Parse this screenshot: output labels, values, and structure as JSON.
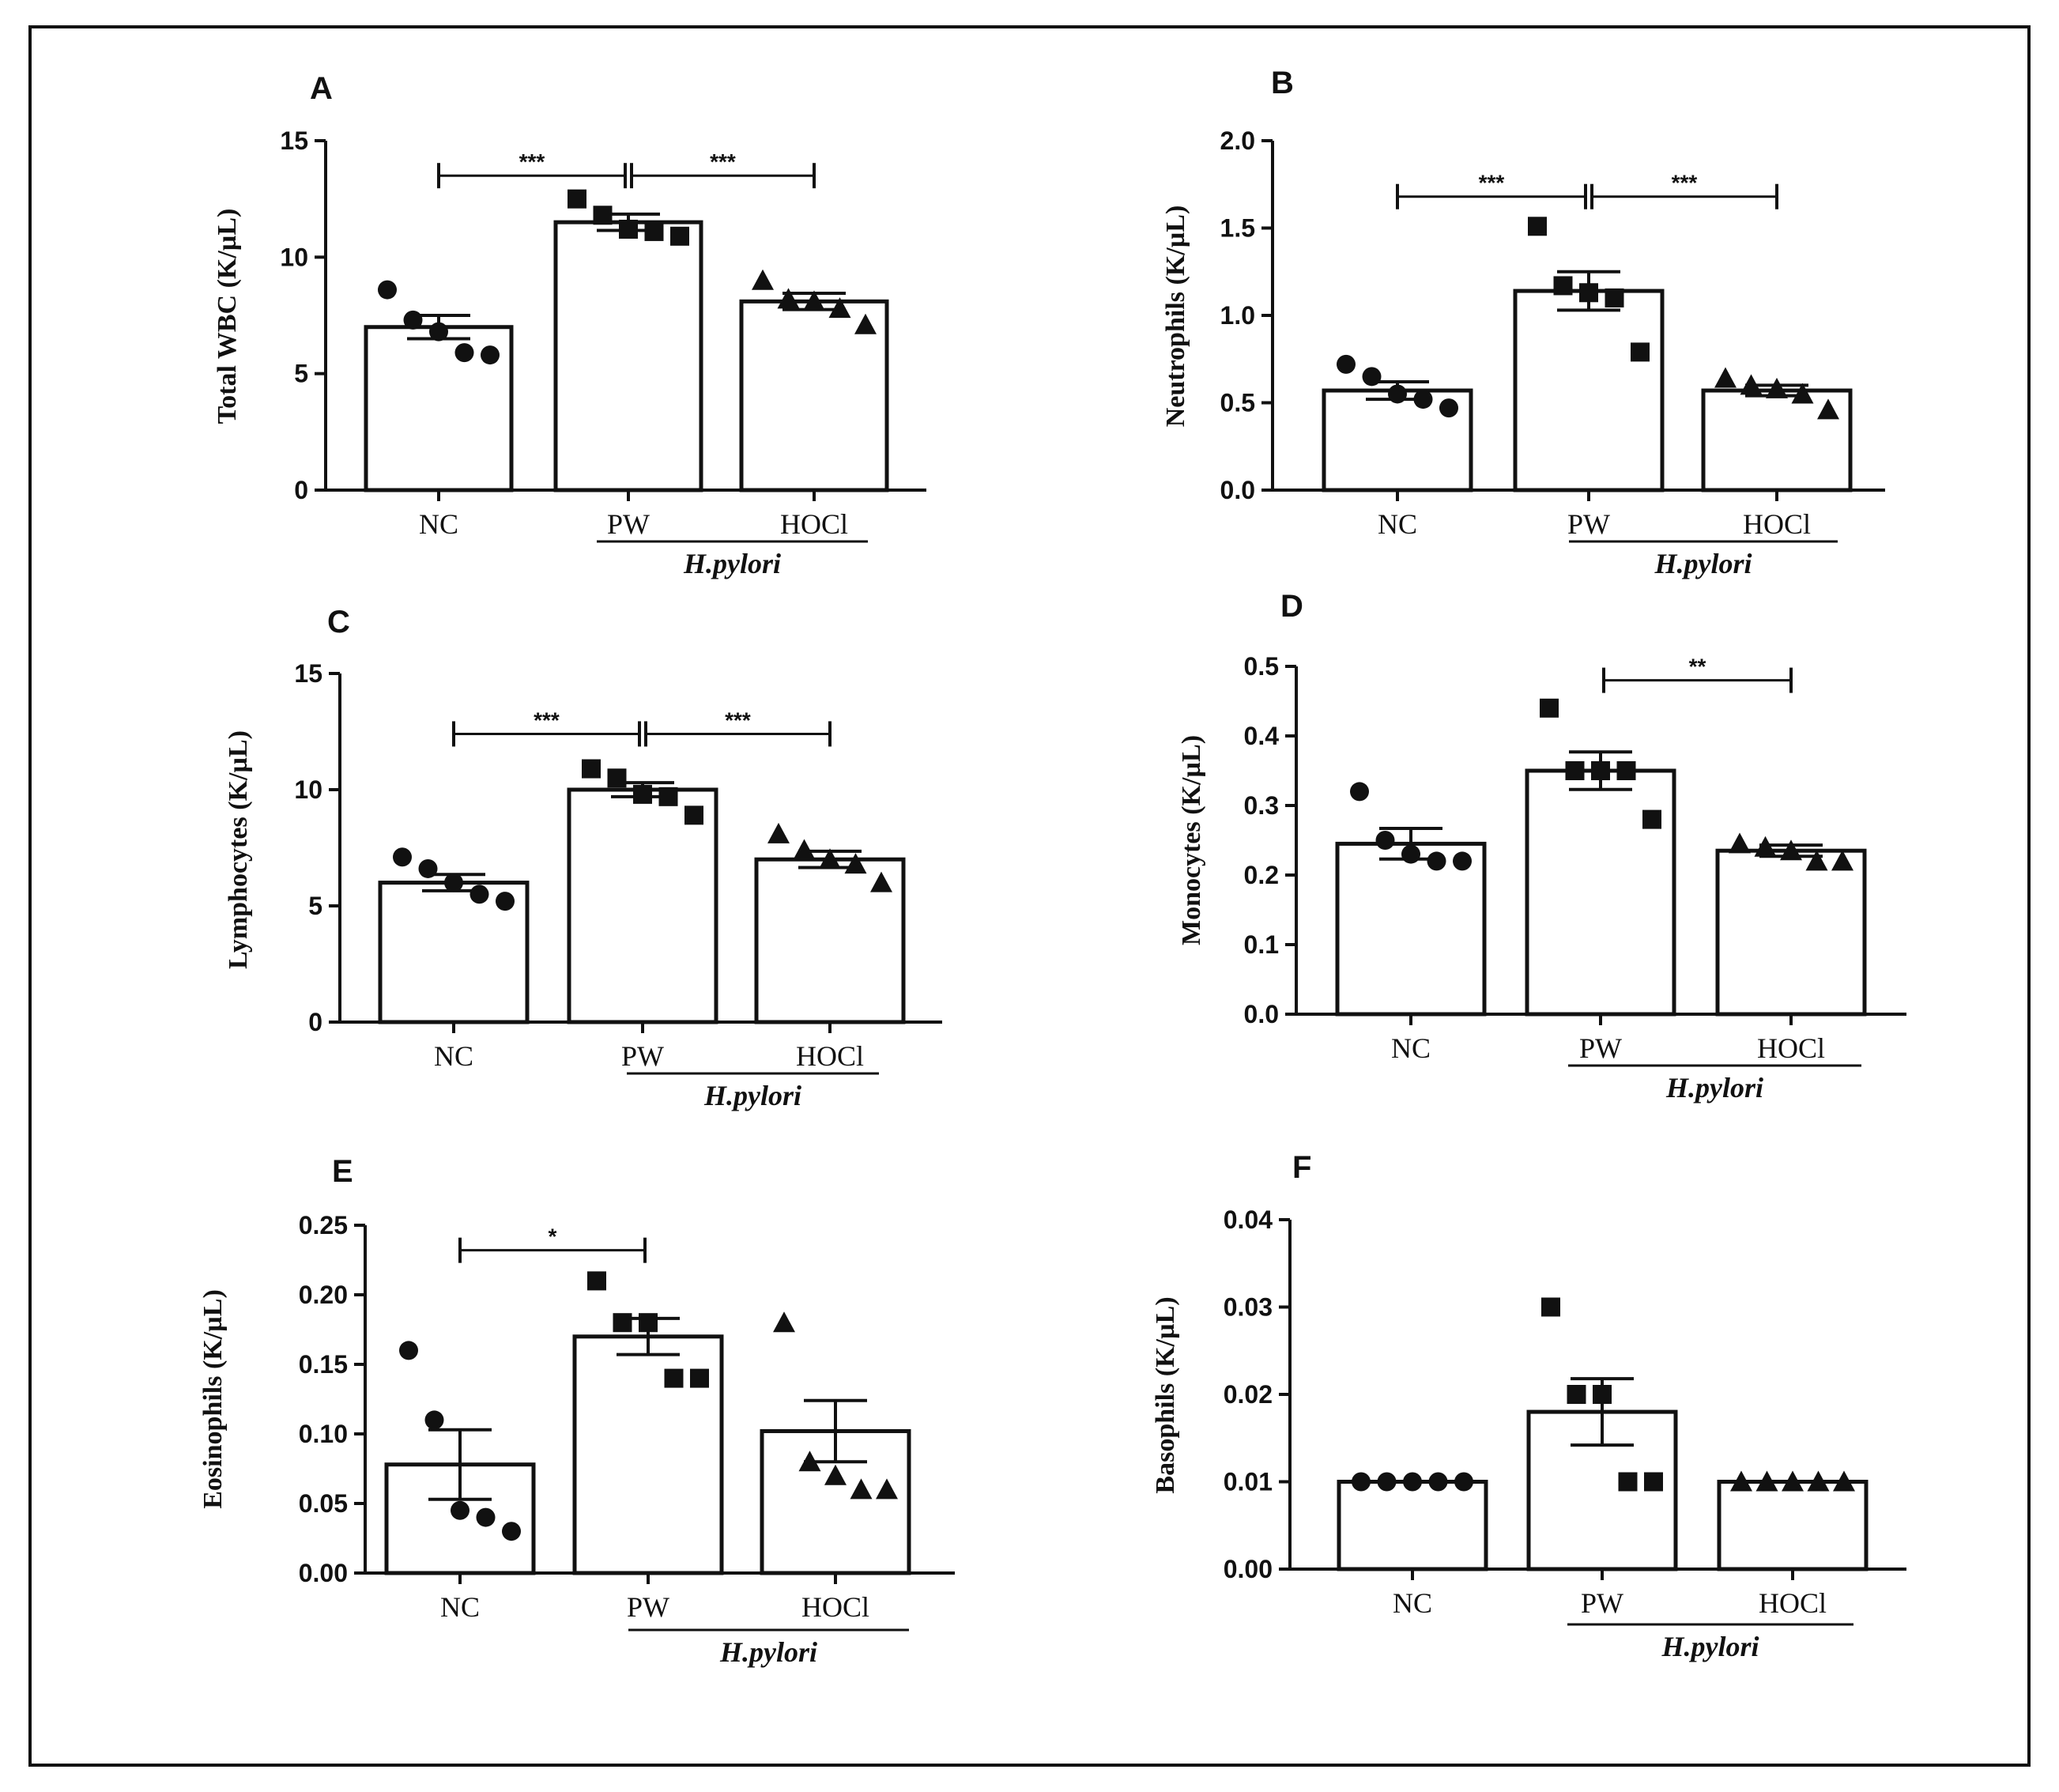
{
  "chart_data": [
    {
      "type": "bar",
      "panel": "A",
      "ylabel": "Total WBC (K/µL)",
      "ylim": [
        0,
        15
      ],
      "yticks": [
        "0",
        "5",
        "10",
        "15"
      ],
      "ytick_values": [
        0,
        5,
        10,
        15
      ],
      "categories": [
        "NC",
        "PW",
        "HOCl"
      ],
      "group_label": "H.pylori",
      "group_categories": [
        "PW",
        "HOCl"
      ],
      "markers": [
        "circle",
        "square",
        "triangle"
      ],
      "values": [
        7.0,
        11.5,
        8.1
      ],
      "sem": [
        0.5,
        0.35,
        0.35
      ],
      "points": [
        [
          8.6,
          7.3,
          6.8,
          5.9,
          5.8
        ],
        [
          12.5,
          11.8,
          11.2,
          11.1,
          10.9
        ],
        [
          9.0,
          8.2,
          8.1,
          7.8,
          7.1
        ]
      ],
      "significance": [
        {
          "from": "NC",
          "to": "PW",
          "label": "***",
          "y": 13.5
        },
        {
          "from": "PW",
          "to": "HOCl",
          "label": "***",
          "y": 13.5
        }
      ]
    },
    {
      "type": "bar",
      "panel": "B",
      "ylabel": "Neutrophils (K/µL)",
      "ylim": [
        0,
        2.0
      ],
      "yticks": [
        "0.0",
        "0.5",
        "1.0",
        "1.5",
        "2.0"
      ],
      "ytick_values": [
        0,
        0.5,
        1.0,
        1.5,
        2.0
      ],
      "categories": [
        "NC",
        "PW",
        "HOCl"
      ],
      "group_label": "H.pylori",
      "group_categories": [
        "PW",
        "HOCl"
      ],
      "markers": [
        "circle",
        "square",
        "triangle"
      ],
      "values": [
        0.57,
        1.14,
        0.57
      ],
      "sem": [
        0.05,
        0.11,
        0.03
      ],
      "points": [
        [
          0.72,
          0.65,
          0.55,
          0.52,
          0.47
        ],
        [
          1.51,
          1.17,
          1.13,
          1.1,
          0.79
        ],
        [
          0.64,
          0.6,
          0.58,
          0.55,
          0.46
        ]
      ],
      "significance": [
        {
          "from": "NC",
          "to": "PW",
          "label": "***",
          "y": 1.68
        },
        {
          "from": "PW",
          "to": "HOCl",
          "label": "***",
          "y": 1.68
        }
      ]
    },
    {
      "type": "bar",
      "panel": "C",
      "ylabel": "Lymphocytes (K/µL)",
      "ylim": [
        0,
        15
      ],
      "yticks": [
        "0",
        "5",
        "10",
        "15"
      ],
      "ytick_values": [
        0,
        5,
        10,
        15
      ],
      "categories": [
        "NC",
        "PW",
        "HOCl"
      ],
      "group_label": "H.pylori",
      "group_categories": [
        "PW",
        "HOCl"
      ],
      "markers": [
        "circle",
        "square",
        "triangle"
      ],
      "values": [
        6.0,
        10.0,
        7.0
      ],
      "sem": [
        0.35,
        0.3,
        0.35
      ],
      "points": [
        [
          7.1,
          6.6,
          6.0,
          5.5,
          5.2
        ],
        [
          10.9,
          10.5,
          9.8,
          9.7,
          8.9
        ],
        [
          8.1,
          7.4,
          7.0,
          6.8,
          6.0
        ]
      ],
      "significance": [
        {
          "from": "NC",
          "to": "PW",
          "label": "***",
          "y": 12.4
        },
        {
          "from": "PW",
          "to": "HOCl",
          "label": "***",
          "y": 12.4
        }
      ]
    },
    {
      "type": "bar",
      "panel": "D",
      "ylabel": "Monocytes (K/µL)",
      "ylim": [
        0,
        0.5
      ],
      "yticks": [
        "0.0",
        "0.1",
        "0.2",
        "0.3",
        "0.4",
        "0.5"
      ],
      "ytick_values": [
        0,
        0.1,
        0.2,
        0.3,
        0.4,
        0.5
      ],
      "categories": [
        "NC",
        "PW",
        "HOCl"
      ],
      "group_label": "H.pylori",
      "group_categories": [
        "PW",
        "HOCl"
      ],
      "markers": [
        "circle",
        "square",
        "triangle"
      ],
      "values": [
        0.245,
        0.35,
        0.235
      ],
      "sem": [
        0.022,
        0.027,
        0.008
      ],
      "points": [
        [
          0.32,
          0.25,
          0.23,
          0.22,
          0.22
        ],
        [
          0.44,
          0.35,
          0.35,
          0.35,
          0.28
        ],
        [
          0.245,
          0.24,
          0.235,
          0.22,
          0.22
        ]
      ],
      "significance": [
        {
          "from": "PW",
          "to": "HOCl",
          "label": "**",
          "y": 0.48
        }
      ]
    },
    {
      "type": "bar",
      "panel": "E",
      "ylabel": "Eosinophils (K/µL)",
      "ylim": [
        0,
        0.25
      ],
      "yticks": [
        "0.00",
        "0.05",
        "0.10",
        "0.15",
        "0.20",
        "0.25"
      ],
      "ytick_values": [
        0,
        0.05,
        0.1,
        0.15,
        0.2,
        0.25
      ],
      "categories": [
        "NC",
        "PW",
        "HOCl"
      ],
      "group_label": "H.pylori",
      "group_categories": [
        "PW",
        "HOCl"
      ],
      "markers": [
        "circle",
        "square",
        "triangle"
      ],
      "values": [
        0.078,
        0.17,
        0.102
      ],
      "sem": [
        0.025,
        0.013,
        0.022
      ],
      "points": [
        [
          0.16,
          0.11,
          0.045,
          0.04,
          0.03
        ],
        [
          0.21,
          0.18,
          0.18,
          0.14,
          0.14
        ],
        [
          0.18,
          0.08,
          0.07,
          0.06,
          0.06
        ]
      ],
      "significance": [
        {
          "from": "NC",
          "to": "PW",
          "label": "*",
          "y": 0.232
        }
      ]
    },
    {
      "type": "bar",
      "panel": "F",
      "ylabel": "Basophils (K/µL)",
      "ylim": [
        0,
        0.04
      ],
      "yticks": [
        "0.00",
        "0.01",
        "0.02",
        "0.03",
        "0.04"
      ],
      "ytick_values": [
        0,
        0.01,
        0.02,
        0.03,
        0.04
      ],
      "categories": [
        "NC",
        "PW",
        "HOCl"
      ],
      "group_label": "H.pylori",
      "group_categories": [
        "PW",
        "HOCl"
      ],
      "markers": [
        "circle",
        "square",
        "triangle"
      ],
      "values": [
        0.01,
        0.018,
        0.01
      ],
      "sem": [
        0,
        0.0038,
        0
      ],
      "points": [
        [
          0.01,
          0.01,
          0.01,
          0.01,
          0.01
        ],
        [
          0.03,
          0.02,
          0.02,
          0.01,
          0.01
        ],
        [
          0.01,
          0.01,
          0.01,
          0.01,
          0.01
        ]
      ],
      "significance": []
    }
  ]
}
